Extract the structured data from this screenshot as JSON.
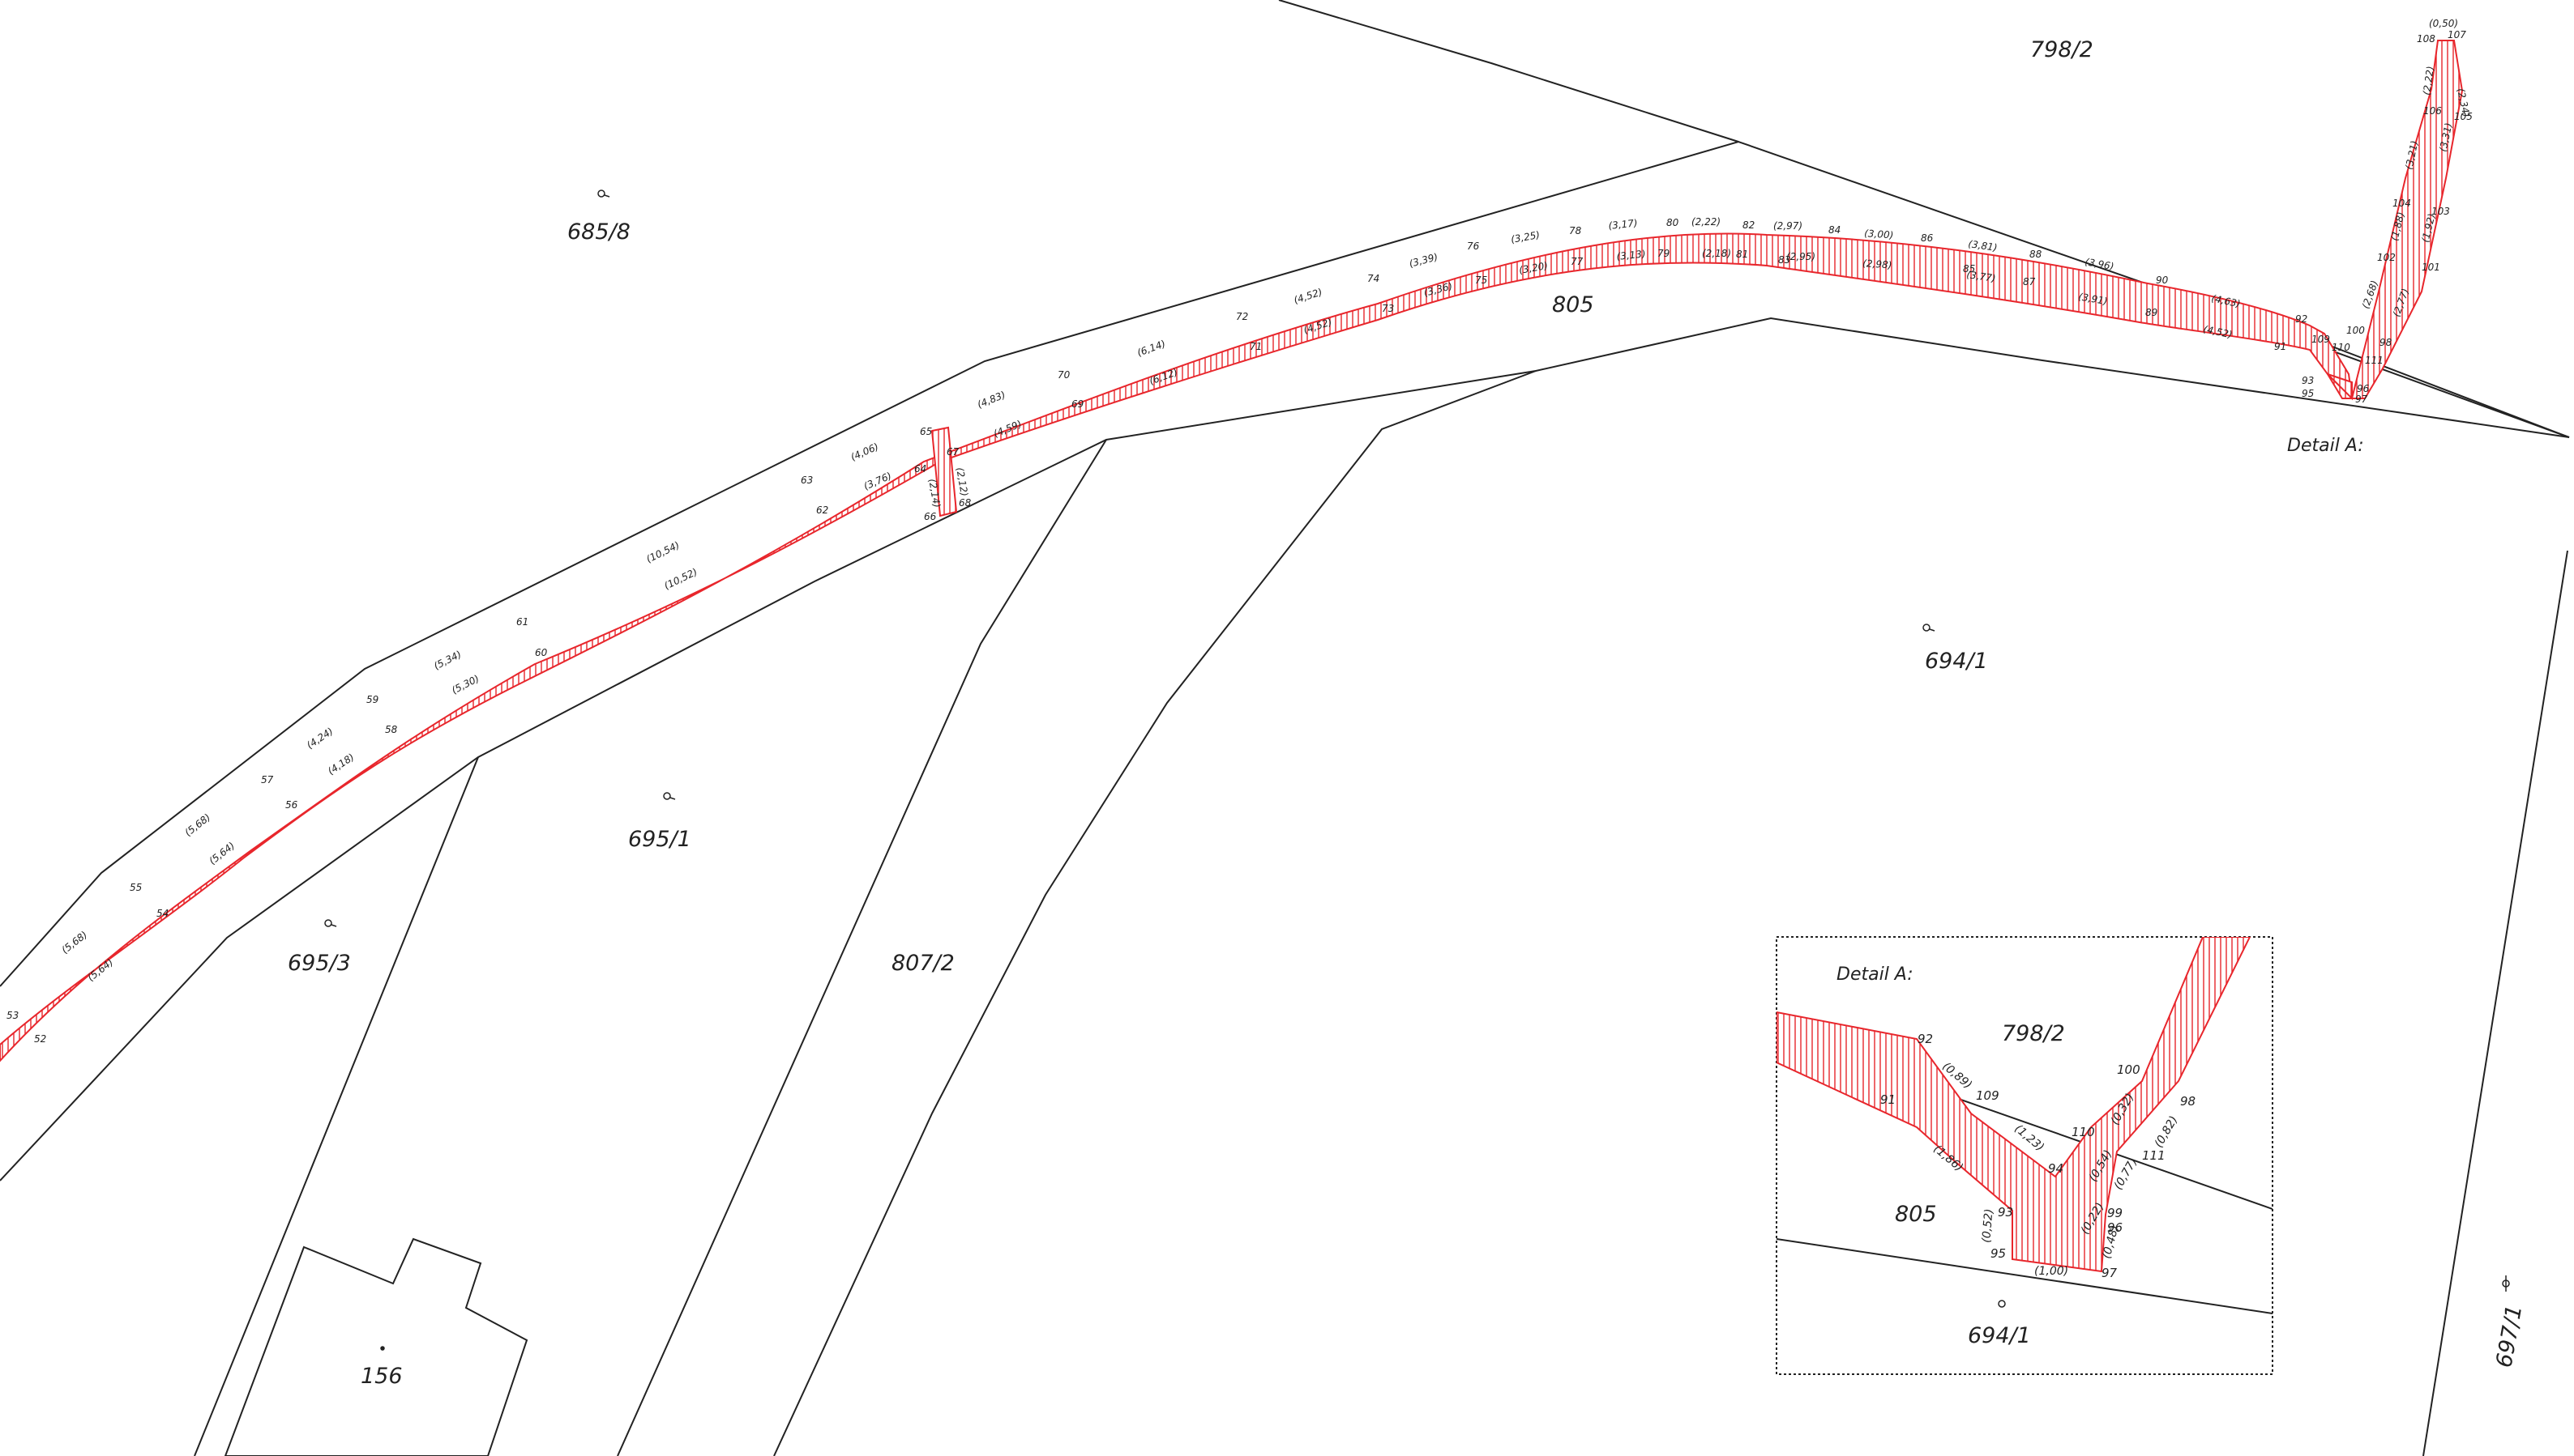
{
  "colors": {
    "boundary": "#222222",
    "easement": "#e8262c",
    "background": "#ffffff"
  },
  "parcels": {
    "p798_2": "798/2",
    "p685_8": "685/8",
    "p805": "805",
    "p694_1": "694/1",
    "p695_1": "695/1",
    "p695_3": "695/3",
    "p807_2": "807/2",
    "p156": "156",
    "p697_1": "697/1"
  },
  "detail": {
    "title": "Detail A:",
    "inset_title": "Detail A:",
    "parcel_798_2": "798/2",
    "parcel_805": "805",
    "parcel_694_1": "694/1",
    "points": [
      "91",
      "92",
      "109",
      "93",
      "95",
      "94",
      "110",
      "100",
      "99",
      "96",
      "97",
      "111",
      "98"
    ],
    "dims": [
      "(0,89)",
      "(1,86)",
      "(1,23)",
      "(0,52)",
      "(1,00)",
      "(0,54)",
      "(0,32)",
      "(0,77)",
      "(0,22)",
      "(0,48)",
      "(0,82)"
    ]
  },
  "points": {
    "upper": [
      "53",
      "55",
      "57",
      "59",
      "61",
      "63",
      "65",
      "70",
      "72",
      "74",
      "76",
      "78",
      "80",
      "82",
      "84",
      "86",
      "88",
      "90",
      "92"
    ],
    "lower": [
      "52",
      "54",
      "56",
      "58",
      "60",
      "62",
      "64",
      "69",
      "71",
      "73",
      "75",
      "77",
      "79",
      "81",
      "83",
      "85",
      "87",
      "89",
      "91"
    ],
    "side": [
      "66",
      "67",
      "68",
      "93",
      "95",
      "96",
      "97",
      "98",
      "100",
      "101",
      "102",
      "103",
      "104",
      "105",
      "106",
      "107",
      "108",
      "109",
      "110",
      "111"
    ]
  },
  "dims": {
    "upper": [
      "(5,68)",
      "(5,68)",
      "(4,24)",
      "(5,34)",
      "(10,54)",
      "(4,06)",
      "(4,83)",
      "(6,14)",
      "(4,52)",
      "(3,39)",
      "(3,25)",
      "(3,17)",
      "(2,22)",
      "(2,97)",
      "(3,00)",
      "(3,81)",
      "(3,96)",
      "(4,63)"
    ],
    "lower": [
      "(5,64)",
      "(5,64)",
      "(4,18)",
      "(5,30)",
      "(10,52)",
      "(3,76)",
      "(4,59)",
      "(6,12)",
      "(4,52)",
      "(3,36)",
      "(3,20)",
      "(3,13)",
      "(2,18)",
      "(2,95)",
      "(2,98)",
      "(3,77)",
      "(3,91)",
      "(4,52)"
    ],
    "side": [
      "(2,14)",
      "(2,12)",
      "(2,68)",
      "(2,77)",
      "(1,88)",
      "(1,92)",
      "(3,21)",
      "(3,31)",
      "(2,22)",
      "(2,34)",
      "(0,50)"
    ]
  }
}
